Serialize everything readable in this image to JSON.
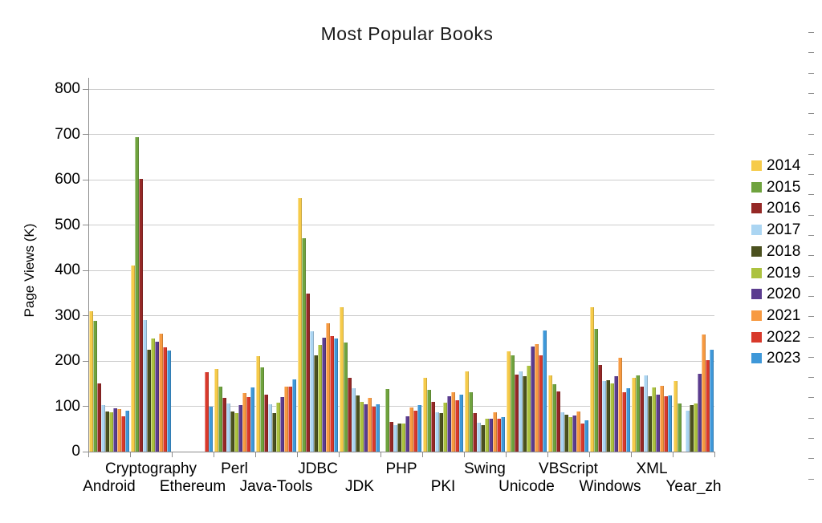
{
  "title": "Most Popular Books",
  "y_axis_label": "Page Views (K)",
  "chart_data": {
    "type": "bar",
    "title": "Most Popular Books",
    "xlabel": "",
    "ylabel": "Page Views (K)",
    "ylim": [
      0,
      800
    ],
    "y_ticks": [
      0,
      100,
      200,
      300,
      400,
      500,
      600,
      700,
      800
    ],
    "grid": true,
    "legend_position": "right",
    "categories": [
      "Android",
      "Cryptography",
      "Ethereum",
      "Perl",
      "Java-Tools",
      "JDBC",
      "JDK",
      "PHP",
      "PKI",
      "Swing",
      "Unicode",
      "VBScript",
      "Windows",
      "XML",
      "Year_zh"
    ],
    "series": [
      {
        "name": "2014",
        "color": "#F6CB4A",
        "values": [
          310,
          411,
          0,
          183,
          211,
          560,
          319,
          0,
          162,
          177,
          222,
          168,
          318,
          162,
          155
        ]
      },
      {
        "name": "2015",
        "color": "#6FA33E",
        "values": [
          288,
          694,
          0,
          144,
          186,
          470,
          240,
          138,
          137,
          131,
          212,
          148,
          270,
          169,
          106
        ]
      },
      {
        "name": "2016",
        "color": "#952826",
        "values": [
          150,
          601,
          0,
          118,
          126,
          348,
          163,
          65,
          110,
          85,
          170,
          133,
          192,
          143,
          0
        ]
      },
      {
        "name": "2017",
        "color": "#ABD5F2",
        "values": [
          103,
          290,
          0,
          106,
          104,
          265,
          140,
          58,
          87,
          64,
          177,
          87,
          155,
          169,
          91
        ]
      },
      {
        "name": "2018",
        "color": "#4B511F",
        "values": [
          89,
          225,
          0,
          88,
          85,
          213,
          124,
          62,
          85,
          58,
          166,
          82,
          157,
          122,
          103
        ]
      },
      {
        "name": "2019",
        "color": "#ACC23F",
        "values": [
          87,
          249,
          0,
          85,
          108,
          236,
          110,
          62,
          108,
          73,
          189,
          76,
          150,
          141,
          106
        ]
      },
      {
        "name": "2020",
        "color": "#5B3C8F",
        "values": [
          95,
          242,
          0,
          103,
          120,
          252,
          105,
          78,
          122,
          73,
          232,
          80,
          167,
          126,
          172
        ]
      },
      {
        "name": "2021",
        "color": "#F79A41",
        "values": [
          93,
          260,
          0,
          130,
          143,
          283,
          119,
          97,
          131,
          87,
          238,
          88,
          207,
          145,
          258
        ]
      },
      {
        "name": "2022",
        "color": "#D8392B",
        "values": [
          78,
          230,
          175,
          120,
          143,
          254,
          100,
          90,
          113,
          73,
          212,
          62,
          131,
          122,
          202
        ]
      },
      {
        "name": "2023",
        "color": "#3E98D9",
        "values": [
          90,
          223,
          100,
          142,
          159,
          249,
          104,
          103,
          126,
          76,
          267,
          69,
          140,
          124,
          225
        ]
      }
    ]
  }
}
